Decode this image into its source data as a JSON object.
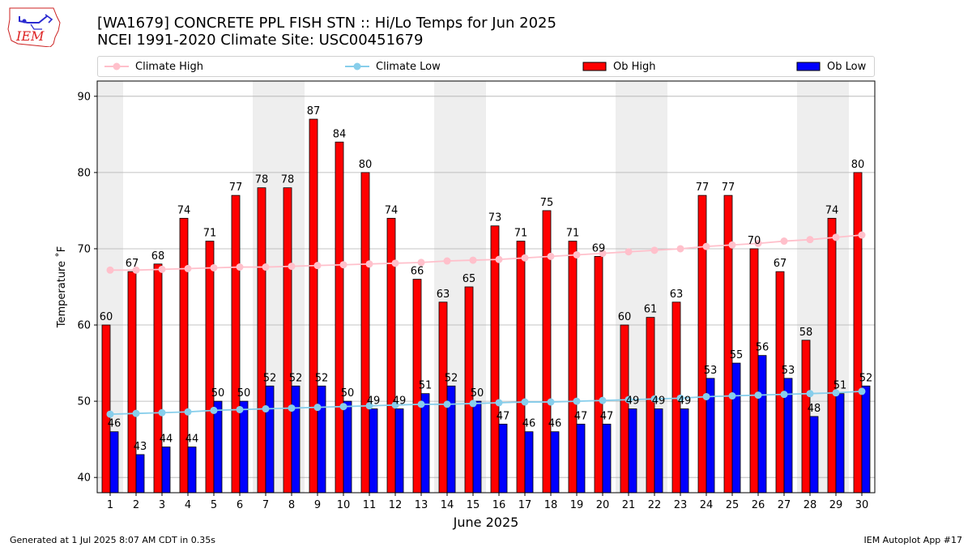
{
  "header": {
    "title_line1": "[WA1679] CONCRETE PPL FISH STN :: Hi/Lo Temps for Jun 2025",
    "title_line2": "NCEI 1991-2020 Climate Site: USC00451679"
  },
  "logo": {
    "text": "IEM"
  },
  "footer": {
    "left": "Generated at 1 Jul 2025 8:07 AM CDT in 0.35s",
    "right": "IEM Autoplot App #17"
  },
  "colors": {
    "ob_high": "#ff0000",
    "ob_low": "#0000ff",
    "climate_high": "#ffc0cb",
    "climate_low": "#87ceeb",
    "weekend_band": "#eeeeee",
    "grid": "#b0b0b0"
  },
  "chart_data": {
    "type": "bar",
    "xlabel": "June 2025",
    "ylabel": "Temperature ˚F",
    "ylim": [
      38,
      92
    ],
    "yticks": [
      40,
      50,
      60,
      70,
      80,
      90
    ],
    "grid": "horizontal",
    "legend_position": "top",
    "shaded_days": [
      1,
      7,
      8,
      14,
      15,
      21,
      22,
      28,
      29
    ],
    "categories": [
      "1",
      "2",
      "3",
      "4",
      "5",
      "6",
      "7",
      "8",
      "9",
      "10",
      "11",
      "12",
      "13",
      "14",
      "15",
      "16",
      "17",
      "18",
      "19",
      "20",
      "21",
      "22",
      "23",
      "24",
      "25",
      "26",
      "27",
      "28",
      "29",
      "30"
    ],
    "series": [
      {
        "name": "Ob High",
        "kind": "bar",
        "values": [
          60,
          67,
          68,
          74,
          71,
          77,
          78,
          78,
          87,
          84,
          80,
          74,
          66,
          63,
          65,
          73,
          71,
          75,
          71,
          69,
          60,
          61,
          63,
          77,
          77,
          70,
          67,
          58,
          74,
          80
        ]
      },
      {
        "name": "Ob Low",
        "kind": "bar",
        "values": [
          46,
          43,
          44,
          44,
          50,
          50,
          52,
          52,
          52,
          50,
          49,
          49,
          51,
          52,
          50,
          47,
          46,
          46,
          47,
          47,
          49,
          49,
          49,
          53,
          55,
          56,
          53,
          48,
          51,
          52
        ]
      },
      {
        "name": "Climate High",
        "kind": "line",
        "values": [
          67.2,
          67.2,
          67.3,
          67.4,
          67.5,
          67.6,
          67.6,
          67.7,
          67.8,
          67.9,
          68.0,
          68.1,
          68.2,
          68.4,
          68.5,
          68.6,
          68.8,
          69.0,
          69.2,
          69.4,
          69.6,
          69.8,
          70.0,
          70.3,
          70.5,
          70.7,
          71.0,
          71.2,
          71.5,
          71.8
        ]
      },
      {
        "name": "Climate Low",
        "kind": "line",
        "values": [
          48.3,
          48.4,
          48.5,
          48.6,
          48.8,
          48.9,
          49.0,
          49.1,
          49.2,
          49.3,
          49.4,
          49.5,
          49.6,
          49.6,
          49.7,
          49.8,
          49.9,
          49.9,
          50.0,
          50.1,
          50.2,
          50.3,
          50.4,
          50.6,
          50.7,
          50.8,
          50.9,
          51.0,
          51.1,
          51.3
        ]
      }
    ]
  }
}
